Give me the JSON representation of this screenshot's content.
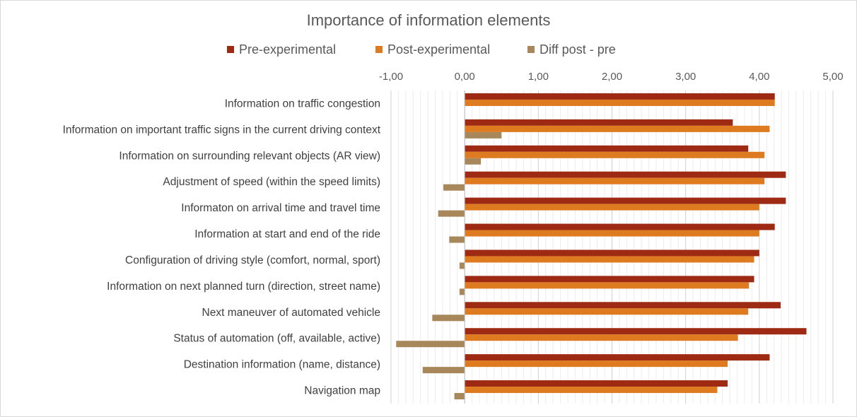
{
  "chart_data": {
    "type": "bar",
    "orientation": "horizontal",
    "title": "Importance of information elements",
    "legend_position": "top",
    "grid": true,
    "xlim": [
      -1,
      5
    ],
    "ticks": [
      -1,
      0,
      1,
      2,
      3,
      4,
      5
    ],
    "tick_labels": [
      "-1,00",
      "0,00",
      "1,00",
      "2,00",
      "3,00",
      "4,00",
      "5,00"
    ],
    "categories": [
      "Information on traffic congestion",
      "Information on important traffic signs in the current driving context",
      "Information on surrounding relevant objects (AR view)",
      "Adjustment of speed (within the speed limits)",
      "Informaton on arrival time and travel time",
      "Information at start and end of the ride",
      "Configuration of driving style (comfort, normal, sport)",
      "Information on next planned turn (direction, street name)",
      "Next maneuver of automated vehicle",
      "Status of automation (off, available, active)",
      "Destination  information (name, distance)",
      "Navigation map"
    ],
    "series": [
      {
        "name": "Pre-experimental",
        "color": "#9e2a14",
        "values": [
          4.21,
          3.64,
          3.85,
          4.36,
          4.36,
          4.21,
          4.0,
          3.93,
          4.29,
          4.64,
          4.14,
          3.57
        ]
      },
      {
        "name": "Post-experimental",
        "color": "#de7b20",
        "values": [
          4.21,
          4.14,
          4.07,
          4.07,
          4.0,
          4.0,
          3.93,
          3.86,
          3.85,
          3.71,
          3.57,
          3.43
        ]
      },
      {
        "name": "Diff post - pre",
        "color": "#a8885a",
        "values": [
          0.0,
          0.5,
          0.22,
          -0.29,
          -0.36,
          -0.21,
          -0.07,
          -0.07,
          -0.44,
          -0.93,
          -0.57,
          -0.14
        ]
      }
    ]
  }
}
